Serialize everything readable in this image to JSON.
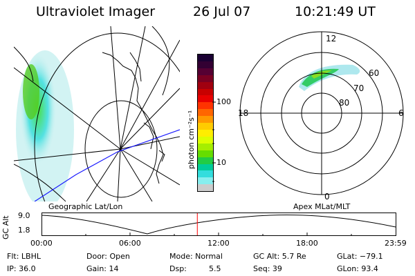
{
  "header": {
    "title": "Ultraviolet Imager",
    "date": "26 Jul 07",
    "time": "10:21:49 UT"
  },
  "colorbar": {
    "unit_label": "photon cm⁻²s⁻¹",
    "ticks": [
      "100",
      "10"
    ],
    "colors": [
      "#1a0033",
      "#330033",
      "#550033",
      "#7a0022",
      "#a00010",
      "#c80000",
      "#e80000",
      "#ff3300",
      "#ff6600",
      "#ff9900",
      "#ffcc00",
      "#ffee00",
      "#ddff00",
      "#a6ee00",
      "#66dd00",
      "#22cc44",
      "#00cc99",
      "#33dddd",
      "#88eeee",
      "#cccccc"
    ]
  },
  "geo_panel": {
    "label": "Geographic Lat/Lon"
  },
  "polar_panel": {
    "label": "Apex MLat/MLT",
    "lat_labels": [
      "60",
      "70",
      "80"
    ],
    "mlt_labels": {
      "top": "12",
      "bottom": "0",
      "left": "18",
      "right": "6"
    }
  },
  "altitude_plot": {
    "ylabel": "GC Alt",
    "ytick_top": "9.0",
    "ytick_bottom": "1.8",
    "xticks": [
      "00:00",
      "06:00",
      "12:00",
      "18:00",
      "23:59"
    ],
    "current_time_fraction": 0.44,
    "marker_color": "#ff0000"
  },
  "info": {
    "filter": "Flt: LBHL",
    "ip": "IP: 36.0",
    "door": "Door: Open",
    "gain": "Gain: 14",
    "mode": "Mode: Normal",
    "dsp_label": "Dsp:",
    "dsp_value": "5.5",
    "gc_alt": "GC Alt: 5.7 Re",
    "seq": "Seq: 39",
    "glat": "GLat: −79.1",
    "glon": "GLon:  93.4"
  }
}
